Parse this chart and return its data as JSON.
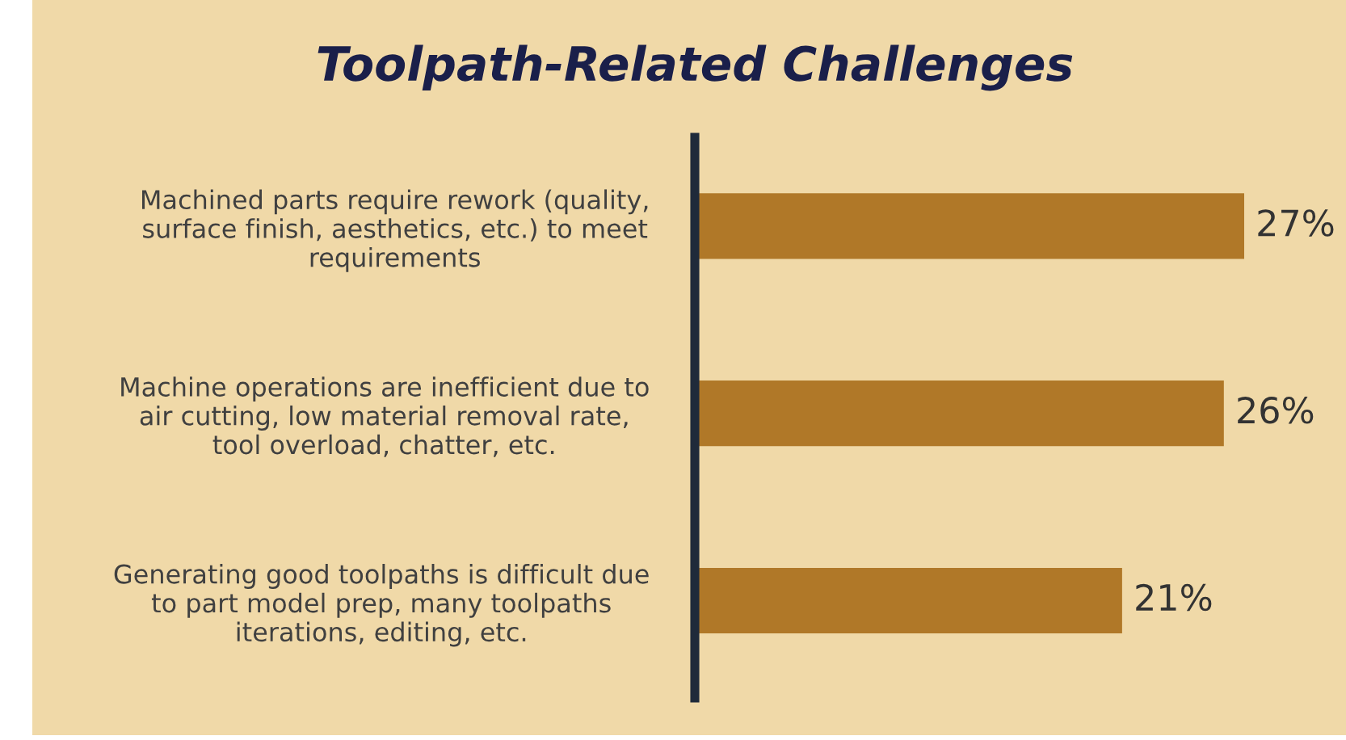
{
  "chart_data": {
    "type": "bar",
    "orientation": "horizontal",
    "title": "Toolpath-Related Challenges",
    "categories": [
      "Machined parts require rework (quality,\nsurface finish, aesthetics, etc.) to meet\nrequirements",
      "Machine operations are inefficient due to\nair cutting, low material removal rate,\ntool overload, chatter, etc.",
      "Generating good toolpaths is difficult due\nto part model prep, many toolpaths\niterations, editing, etc."
    ],
    "values": [
      27,
      26,
      21
    ],
    "color": "#b07828",
    "value_labels": [
      "27%",
      "26%",
      "21%"
    ],
    "grid": false,
    "legend": false
  }
}
